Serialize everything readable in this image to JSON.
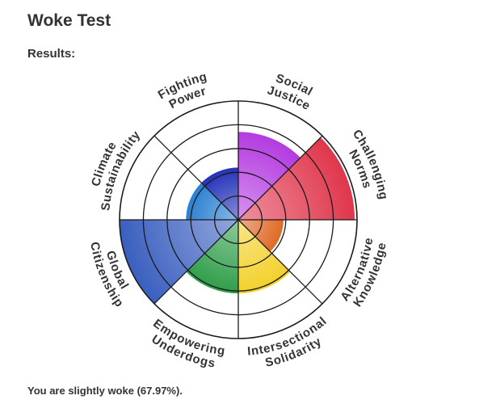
{
  "title": "Woke Test",
  "results_label": "Results:",
  "summary": "You are slightly woke (67.97%).",
  "chart_data": {
    "type": "polar-area",
    "rings": 5,
    "max": 5,
    "categories": [
      {
        "key": "social-justice",
        "lines": [
          "Social",
          "Justice"
        ],
        "value": 3.7,
        "color": "#b43be0"
      },
      {
        "key": "challenging-norms",
        "lines": [
          "Challenging",
          "Norms"
        ],
        "value": 4.9,
        "color": "#e0364c"
      },
      {
        "key": "alternative-knowledge",
        "lines": [
          "Alternative",
          "Knowledge"
        ],
        "value": 1.9,
        "color": "#e06a26"
      },
      {
        "key": "intersectional-solidarity",
        "lines": [
          "Intersectional",
          "Solidarity"
        ],
        "value": 3.1,
        "color": "#f2d12c"
      },
      {
        "key": "empowering-underdogs",
        "lines": [
          "Empowering",
          "Underdogs"
        ],
        "value": 3.1,
        "color": "#2f9e4a"
      },
      {
        "key": "global-citizenship",
        "lines": [
          "Global",
          "Citizenship"
        ],
        "value": 5.0,
        "color": "#3a5fbf"
      },
      {
        "key": "climate-sustainability",
        "lines": [
          "Climate",
          "Sustainability"
        ],
        "value": 2.2,
        "color": "#2a7fd2"
      },
      {
        "key": "fighting-power",
        "lines": [
          "Fighting",
          "Power"
        ],
        "value": 2.2,
        "color": "#2433b8"
      }
    ]
  }
}
